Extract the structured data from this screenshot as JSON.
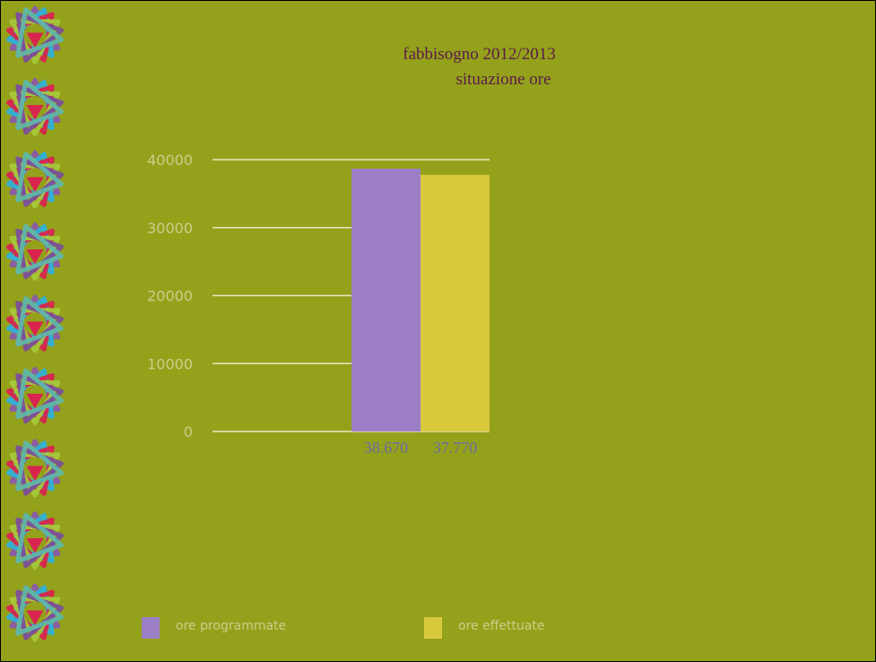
{
  "slide": {
    "background": "#94a11b",
    "decoration_icon": "star-knot-icon",
    "decoration_count": 9
  },
  "colors": {
    "ore_programmate": "#9b7ec6",
    "ore_effettuate": "#d8c83c",
    "value_label": "#6e6aa4",
    "title": "#5a1a4a",
    "axis_text": "#c9cf8a"
  },
  "chart_data": {
    "type": "bar",
    "title": "fabbisogno 2012/2013",
    "subtitle": "situazione ore",
    "xlabel": "",
    "ylabel": "",
    "ylim": [
      0,
      40000
    ],
    "yticks": [
      "40000",
      "30000",
      "20000",
      "10000",
      "0"
    ],
    "grid": true,
    "legend_position": "bottom",
    "series": [
      {
        "name": "ore programmate",
        "values": [
          38670
        ],
        "data_label": "38.670",
        "color": "#9b7ec6"
      },
      {
        "name": "ore effettuate",
        "values": [
          37770
        ],
        "data_label": "37.770",
        "color": "#d8c83c"
      }
    ]
  }
}
